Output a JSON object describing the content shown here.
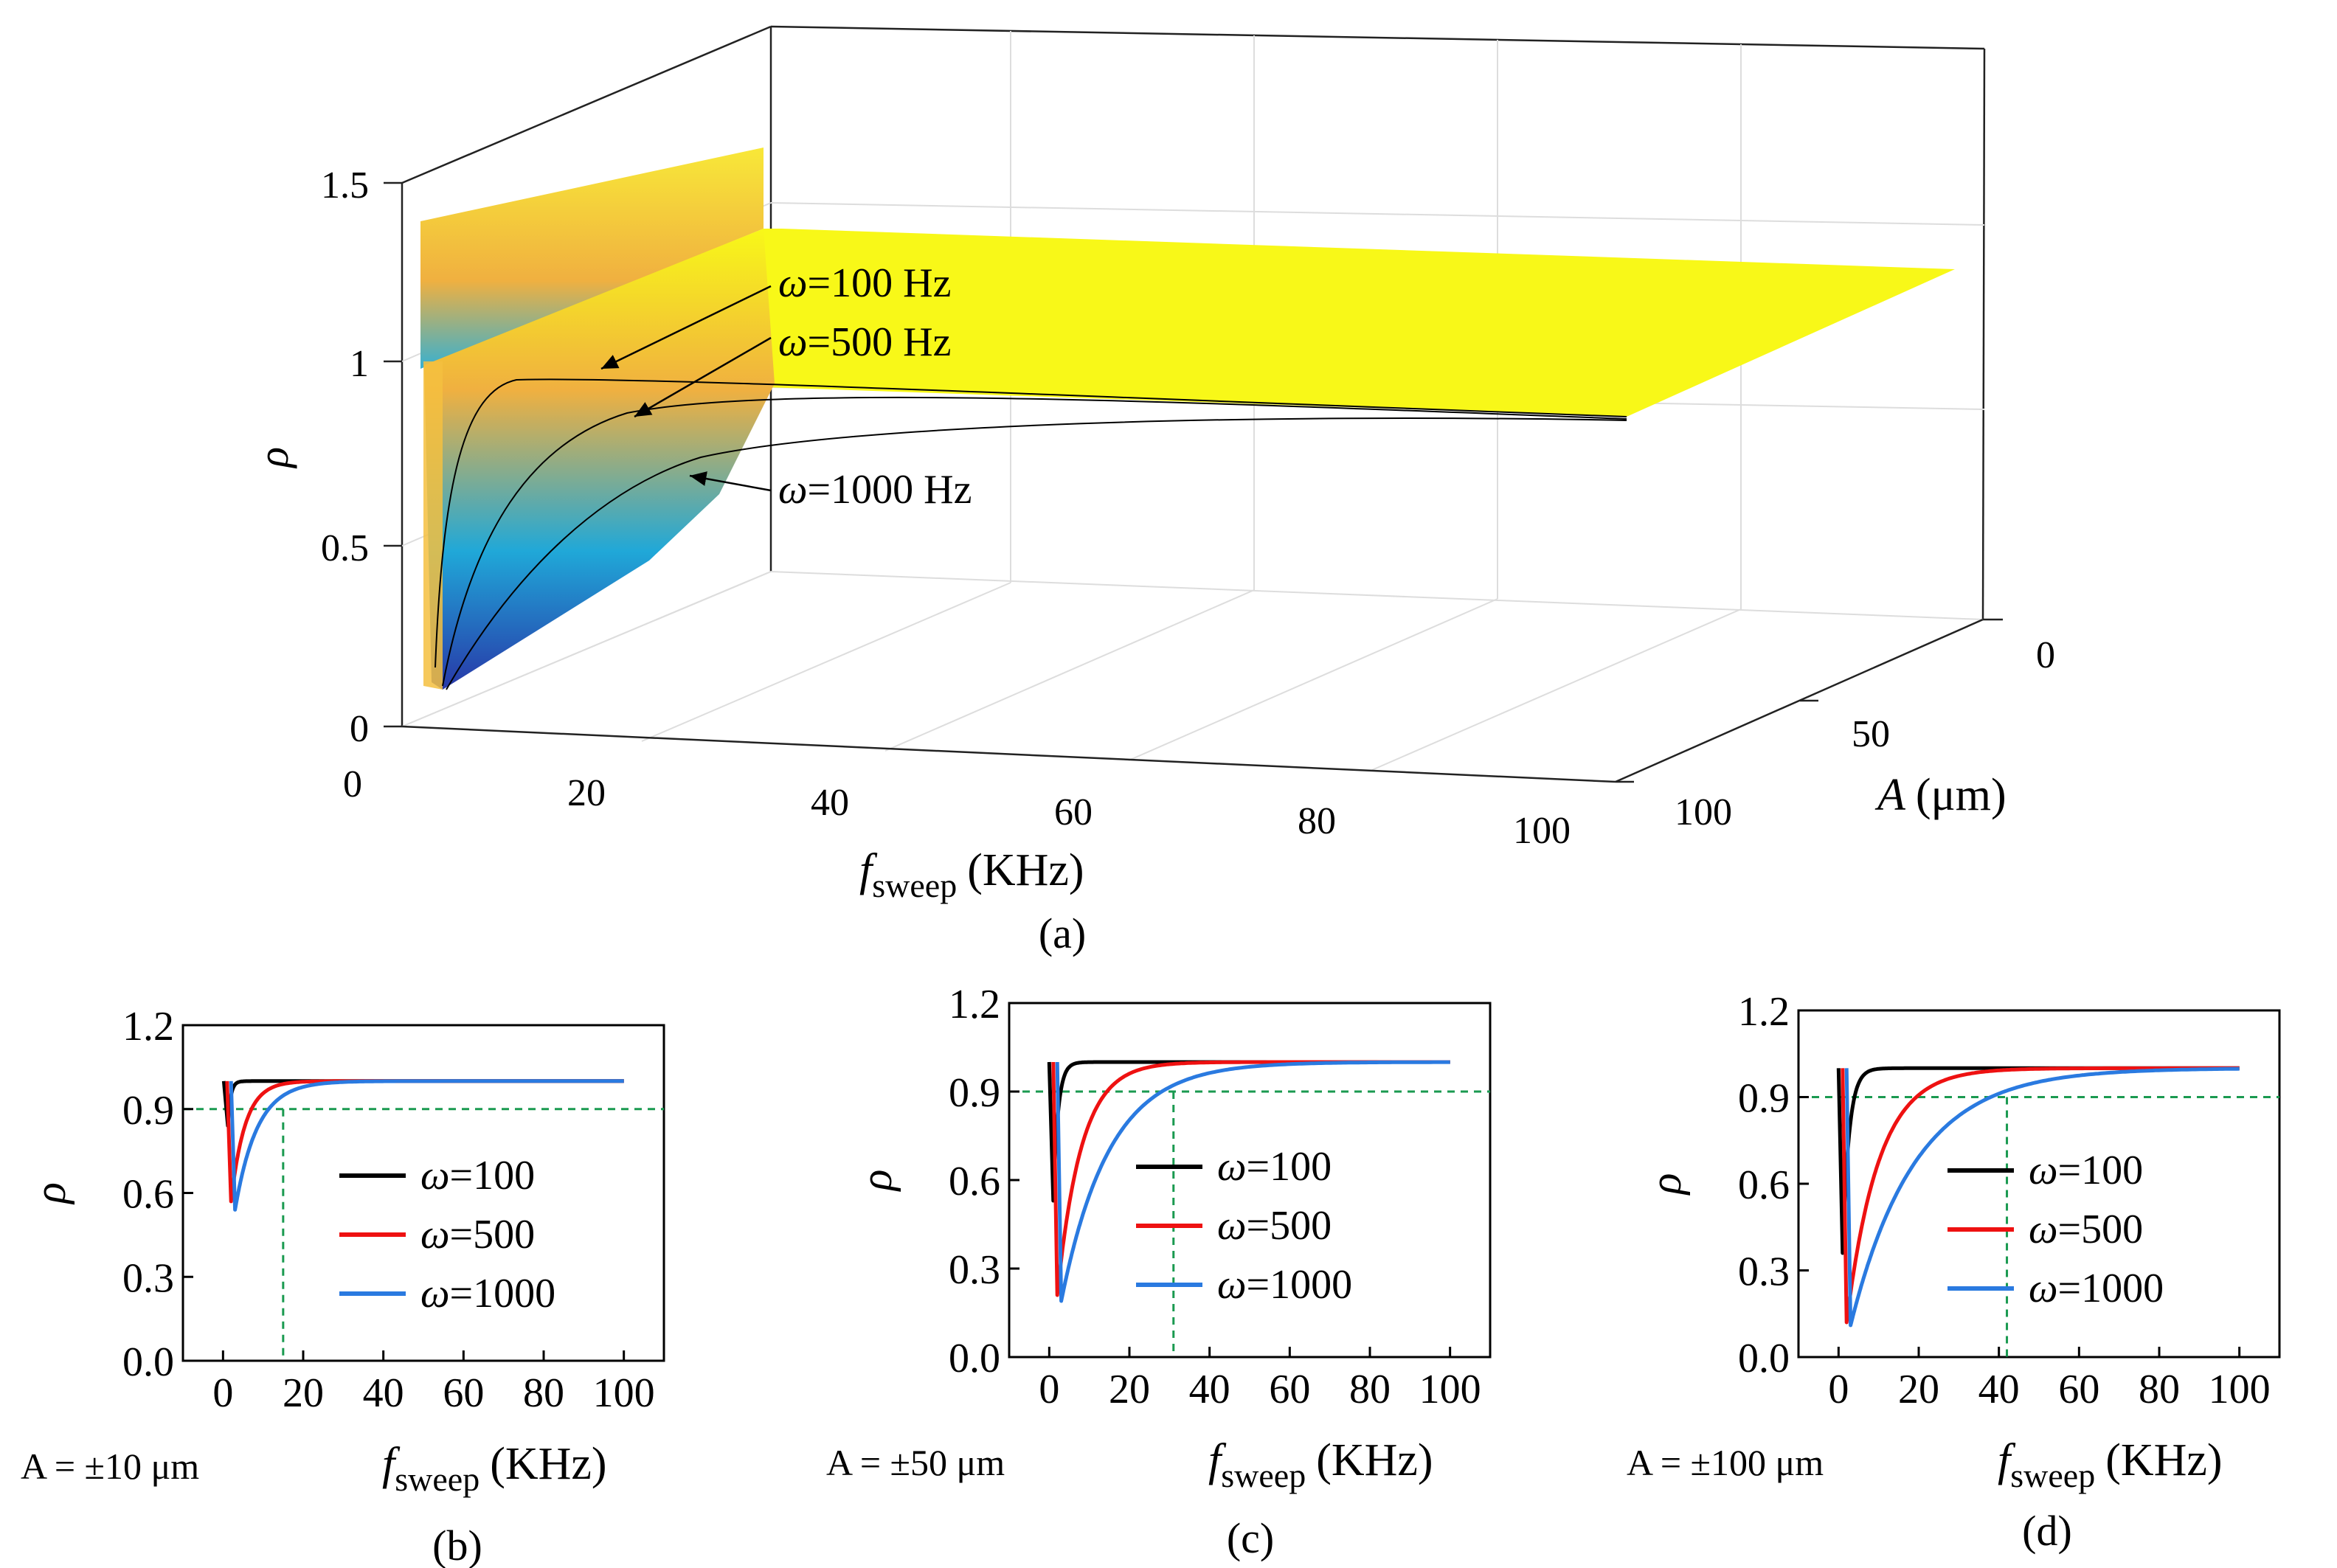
{
  "colors": {
    "w100": "#000000",
    "w500": "#ee1111",
    "w1000": "#2a7ae0",
    "threshold": "#1a9a50",
    "surface_high": "#f8f818",
    "surface_mid": "#f0b040",
    "surface_low": "#20a8d8",
    "surface_min": "#2838a8"
  },
  "chart_data": [
    {
      "panel": "(a)",
      "type": "surface3d",
      "x_label": "f",
      "x_label_sub": "sweep",
      "x_unit": "(KHz)",
      "y_label": "A",
      "y_unit": "(μm)",
      "z_label": "ρ",
      "x_ticks": [
        "0",
        "20",
        "40",
        "60",
        "80",
        "100"
      ],
      "y_ticks": [
        "0",
        "50",
        "100"
      ],
      "z_ticks": [
        "0",
        "0.5",
        "1",
        "1.5"
      ],
      "xlim": [
        0,
        100
      ],
      "ylim": [
        0,
        100
      ],
      "zlim": [
        0,
        1.5
      ],
      "series": [
        {
          "omega": 100,
          "label_prefix": "ω",
          "label_value": "=100 Hz",
          "minimum": {
            "x": 1.0,
            "y": 0.12
          }
        },
        {
          "omega": 500,
          "label_prefix": "ω",
          "label_value": "=500 Hz",
          "minimum": {
            "x": 2.0,
            "y": 0.12
          }
        },
        {
          "omega": 1000,
          "label_prefix": "ω",
          "label_value": "=1000 Hz",
          "minimum": {
            "x": 3.0,
            "y": 0.12
          }
        }
      ]
    },
    {
      "panel": "(b)",
      "type": "line",
      "caption": "(b)",
      "a_text": "A = ±10 μm",
      "x_label": "f",
      "x_label_sub": "sweep",
      "x_unit": "(KHz)",
      "y_label": "ρ",
      "x_ticks": [
        "0",
        "20",
        "40",
        "60",
        "80",
        "100"
      ],
      "y_ticks": [
        "0.0",
        "0.3",
        "0.6",
        "0.9",
        "1.2"
      ],
      "xlim": [
        -10,
        110
      ],
      "ylim": [
        0,
        1.2
      ],
      "threshold": 0.9,
      "threshold_x": 15,
      "series": [
        {
          "name_prefix": "ω",
          "name_value": "=100",
          "min_x": 1.2,
          "min_y": 0.84,
          "tau": 0.7
        },
        {
          "name_prefix": "ω",
          "name_value": "=500",
          "min_x": 2.0,
          "min_y": 0.57,
          "tau": 3.5
        },
        {
          "name_prefix": "ω",
          "name_value": "=1000",
          "min_x": 3.0,
          "min_y": 0.54,
          "tau": 5.5
        }
      ]
    },
    {
      "panel": "(c)",
      "type": "line",
      "caption": "(c)",
      "a_text": "A = ±50 μm",
      "x_label": "f",
      "x_label_sub": "sweep",
      "x_unit": "(KHz)",
      "y_label": "ρ",
      "x_ticks": [
        "0",
        "20",
        "40",
        "60",
        "80",
        "100"
      ],
      "y_ticks": [
        "0.0",
        "0.3",
        "0.6",
        "0.9",
        "1.2"
      ],
      "xlim": [
        -10,
        110
      ],
      "ylim": [
        0,
        1.2
      ],
      "threshold": 0.9,
      "threshold_x": 31,
      "series": [
        {
          "name_prefix": "ω",
          "name_value": "=100",
          "min_x": 1.0,
          "min_y": 0.53,
          "tau": 1.2
        },
        {
          "name_prefix": "ω",
          "name_value": "=500",
          "min_x": 2.0,
          "min_y": 0.21,
          "tau": 6.0
        },
        {
          "name_prefix": "ω",
          "name_value": "=1000",
          "min_x": 3.0,
          "min_y": 0.19,
          "tau": 12.0
        }
      ]
    },
    {
      "panel": "(d)",
      "type": "line",
      "caption": "(d)",
      "a_text": "A = ±100 μm",
      "x_label": "f",
      "x_label_sub": "sweep",
      "x_unit": "(KHz)",
      "y_label": "ρ",
      "x_ticks": [
        "0",
        "20",
        "40",
        "60",
        "80",
        "100"
      ],
      "y_ticks": [
        "0.0",
        "0.3",
        "0.6",
        "0.9",
        "1.2"
      ],
      "xlim": [
        -10,
        110
      ],
      "ylim": [
        0,
        1.2
      ],
      "threshold": 0.9,
      "threshold_x": 42,
      "series": [
        {
          "name_prefix": "ω",
          "name_value": "=100",
          "min_x": 1.0,
          "min_y": 0.36,
          "tau": 1.6
        },
        {
          "name_prefix": "ω",
          "name_value": "=500",
          "min_x": 2.0,
          "min_y": 0.12,
          "tau": 8.0
        },
        {
          "name_prefix": "ω",
          "name_value": "=1000",
          "min_x": 3.0,
          "min_y": 0.11,
          "tau": 16.0
        }
      ]
    }
  ]
}
